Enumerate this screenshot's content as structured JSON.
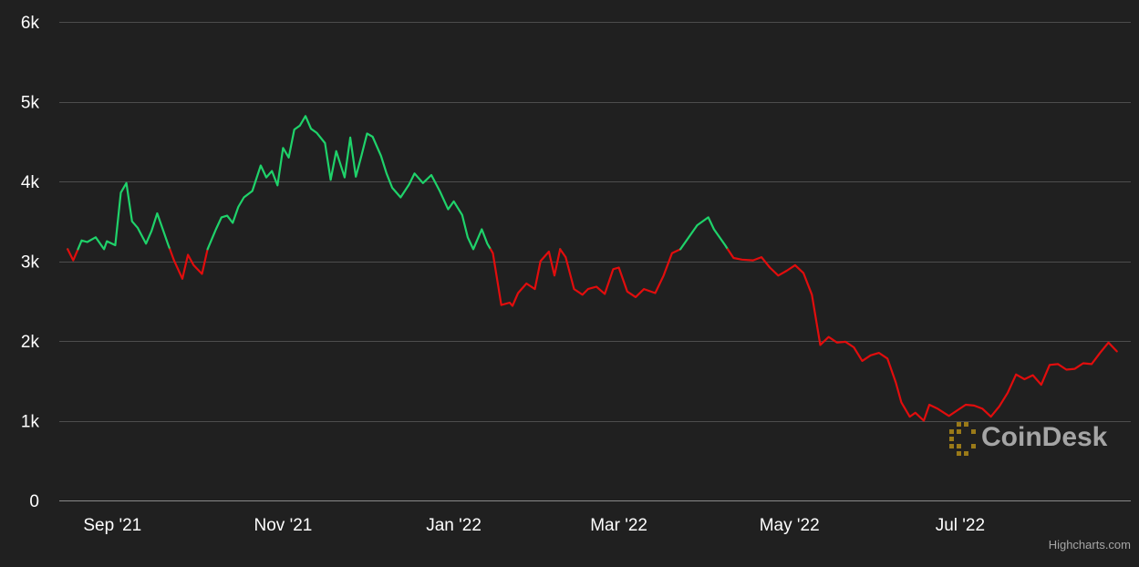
{
  "chart_data": {
    "type": "line",
    "title": "",
    "xlabel": "",
    "ylabel": "",
    "ylim": [
      0,
      6000
    ],
    "y_ticks": [
      0,
      1000,
      2000,
      3000,
      4000,
      5000,
      6000
    ],
    "y_tick_labels": [
      "0",
      "1k",
      "2k",
      "3k",
      "4k",
      "5k",
      "6k"
    ],
    "x_tick_labels": [
      {
        "date": "2021-09-01",
        "label": "Sep '21"
      },
      {
        "date": "2021-11-01",
        "label": "Nov '21"
      },
      {
        "date": "2022-01-01",
        "label": "Jan '22"
      },
      {
        "date": "2022-03-01",
        "label": "Mar '22"
      },
      {
        "date": "2022-05-01",
        "label": "May '22"
      },
      {
        "date": "2022-07-01",
        "label": "Jul '22"
      }
    ],
    "xlim": [
      "2021-08-13",
      "2022-08-31"
    ],
    "threshold": 3150,
    "grid": true,
    "colors": {
      "above": "#1fd26a",
      "below": "#e10d0d",
      "grid": "#4d4d4d",
      "background": "#202020"
    },
    "series": [
      {
        "x": [
          "2021-08-16",
          "2021-08-18",
          "2021-08-21",
          "2021-08-23",
          "2021-08-26",
          "2021-08-29",
          "2021-08-30",
          "2021-09-02",
          "2021-09-04",
          "2021-09-06",
          "2021-09-08",
          "2021-09-10",
          "2021-09-13",
          "2021-09-15",
          "2021-09-17",
          "2021-09-19",
          "2021-09-21",
          "2021-09-23",
          "2021-09-26",
          "2021-09-28",
          "2021-09-30",
          "2021-10-03",
          "2021-10-05",
          "2021-10-08",
          "2021-10-10",
          "2021-10-12",
          "2021-10-14",
          "2021-10-16",
          "2021-10-18",
          "2021-10-21",
          "2021-10-24",
          "2021-10-26",
          "2021-10-28",
          "2021-10-30",
          "2021-11-01",
          "2021-11-03",
          "2021-11-05",
          "2021-11-07",
          "2021-11-09",
          "2021-11-11",
          "2021-11-13",
          "2021-11-16",
          "2021-11-18",
          "2021-11-20",
          "2021-11-23",
          "2021-11-25",
          "2021-11-27",
          "2021-11-29",
          "2021-12-01",
          "2021-12-03",
          "2021-12-06",
          "2021-12-08",
          "2021-12-10",
          "2021-12-13",
          "2021-12-16",
          "2021-12-18",
          "2021-12-21",
          "2021-12-24",
          "2021-12-27",
          "2021-12-30",
          "2022-01-01",
          "2022-01-04",
          "2022-01-06",
          "2022-01-08",
          "2022-01-11",
          "2022-01-13",
          "2022-01-15",
          "2022-01-18",
          "2022-01-21",
          "2022-01-22",
          "2022-01-24",
          "2022-01-27",
          "2022-01-30",
          "2022-02-01",
          "2022-02-04",
          "2022-02-06",
          "2022-02-08",
          "2022-02-10",
          "2022-02-13",
          "2022-02-16",
          "2022-02-18",
          "2022-02-21",
          "2022-02-24",
          "2022-02-27",
          "2022-03-01",
          "2022-03-04",
          "2022-03-07",
          "2022-03-10",
          "2022-03-14",
          "2022-03-17",
          "2022-03-20",
          "2022-03-23",
          "2022-03-26",
          "2022-03-29",
          "2022-04-02",
          "2022-04-04",
          "2022-04-08",
          "2022-04-11",
          "2022-04-14",
          "2022-04-18",
          "2022-04-21",
          "2022-04-24",
          "2022-04-27",
          "2022-04-30",
          "2022-05-03",
          "2022-05-06",
          "2022-05-09",
          "2022-05-12",
          "2022-05-15",
          "2022-05-18",
          "2022-05-21",
          "2022-05-24",
          "2022-05-27",
          "2022-05-30",
          "2022-06-02",
          "2022-06-05",
          "2022-06-08",
          "2022-06-10",
          "2022-06-13",
          "2022-06-15",
          "2022-06-18",
          "2022-06-20",
          "2022-06-23",
          "2022-06-27",
          "2022-06-30",
          "2022-07-03",
          "2022-07-06",
          "2022-07-09",
          "2022-07-12",
          "2022-07-15",
          "2022-07-18",
          "2022-07-21",
          "2022-07-24",
          "2022-07-27",
          "2022-07-30",
          "2022-08-02",
          "2022-08-05",
          "2022-08-08",
          "2022-08-11",
          "2022-08-14",
          "2022-08-17",
          "2022-08-20",
          "2022-08-23",
          "2022-08-26"
        ],
        "values": [
          3150,
          3010,
          3260,
          3240,
          3300,
          3150,
          3250,
          3200,
          3860,
          3980,
          3500,
          3420,
          3220,
          3380,
          3600,
          3400,
          3200,
          3010,
          2780,
          3080,
          2950,
          2840,
          3150,
          3400,
          3550,
          3570,
          3480,
          3680,
          3800,
          3880,
          4200,
          4050,
          4130,
          3950,
          4420,
          4300,
          4650,
          4700,
          4820,
          4660,
          4610,
          4480,
          4020,
          4380,
          4050,
          4550,
          4060,
          4320,
          4600,
          4560,
          4320,
          4100,
          3920,
          3800,
          3960,
          4100,
          3980,
          4080,
          3880,
          3650,
          3750,
          3580,
          3300,
          3150,
          3400,
          3220,
          3100,
          2450,
          2480,
          2440,
          2600,
          2720,
          2650,
          3000,
          3120,
          2820,
          3150,
          3050,
          2650,
          2580,
          2650,
          2680,
          2590,
          2900,
          2920,
          2620,
          2550,
          2650,
          2600,
          2820,
          3100,
          3150,
          3300,
          3450,
          3550,
          3400,
          3200,
          3040,
          3020,
          3010,
          3050,
          2920,
          2820,
          2880,
          2950,
          2850,
          2580,
          1950,
          2050,
          1980,
          1990,
          1920,
          1750,
          1820,
          1850,
          1780,
          1480,
          1230,
          1050,
          1100,
          1000,
          1200,
          1150,
          1060,
          1130,
          1200,
          1190,
          1150,
          1050,
          1180,
          1350,
          1580,
          1520,
          1570,
          1450,
          1700,
          1710,
          1640,
          1650,
          1720,
          1710,
          1850,
          1980,
          1870
        ]
      }
    ],
    "credit": "Highcharts.com",
    "watermark": "CoinDesk"
  }
}
